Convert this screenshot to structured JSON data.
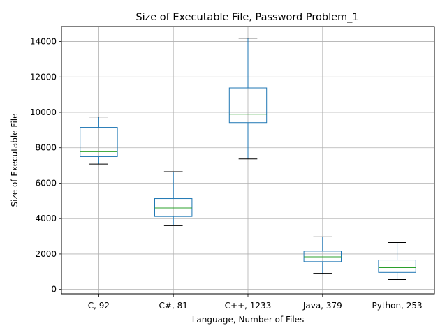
{
  "chart_data": {
    "type": "box",
    "title": "Size of Executable File, Password Problem_1",
    "xlabel": "Language, Number of Files",
    "ylabel": "Size of Executable File",
    "ylim": [
      -250,
      14850
    ],
    "yticks": [
      0,
      2000,
      4000,
      6000,
      8000,
      10000,
      12000,
      14000
    ],
    "grid": true,
    "categories": [
      "C, 92",
      "C#, 81",
      "C++, 1233",
      "Java, 379",
      "Python, 253"
    ],
    "boxes": [
      {
        "whisker_low": 7080,
        "q1": 7500,
        "median": 7780,
        "q3": 9150,
        "whisker_high": 9740
      },
      {
        "whisker_low": 3600,
        "q1": 4120,
        "median": 4600,
        "q3": 5130,
        "whisker_high": 6650
      },
      {
        "whisker_low": 7370,
        "q1": 9420,
        "median": 9890,
        "q3": 11380,
        "whisker_high": 14190
      },
      {
        "whisker_low": 910,
        "q1": 1570,
        "median": 1840,
        "q3": 2160,
        "whisker_high": 2970
      },
      {
        "whisker_low": 560,
        "q1": 960,
        "median": 1230,
        "q3": 1660,
        "whisker_high": 2650
      }
    ],
    "colors": {
      "box": "#1f77b4",
      "median": "#2ca02c",
      "cap": "#000000",
      "grid": "#b0b0b0"
    }
  }
}
